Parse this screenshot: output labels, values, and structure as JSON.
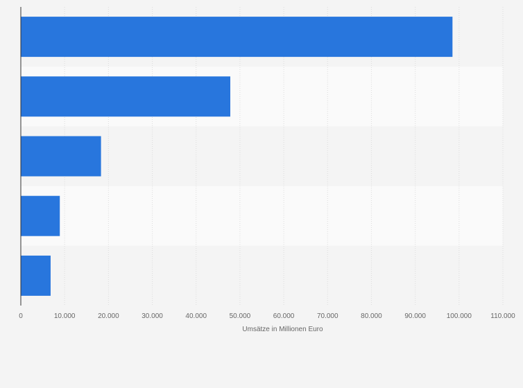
{
  "chart_data": {
    "type": "bar",
    "orientation": "horizontal",
    "categories": [
      "",
      "",
      "",
      "",
      ""
    ],
    "values": [
      98500,
      47800,
      18300,
      8900,
      6800
    ],
    "title": "",
    "xlabel": "Umsätze in Millionen Euro",
    "ylabel": "",
    "xlim": [
      0,
      110000
    ],
    "x_ticks": [
      0,
      10000,
      20000,
      30000,
      40000,
      50000,
      60000,
      70000,
      80000,
      90000,
      100000,
      110000
    ],
    "x_tick_labels": [
      "0",
      "10.000",
      "20.000",
      "30.000",
      "40.000",
      "50.000",
      "60.000",
      "70.000",
      "80.000",
      "90.000",
      "100.000",
      "110.000"
    ],
    "grid": true,
    "bar_color": "#2876dd",
    "band_colors": [
      "#f4f4f4",
      "#fafafa"
    ],
    "background_color": "#f4f4f4"
  }
}
